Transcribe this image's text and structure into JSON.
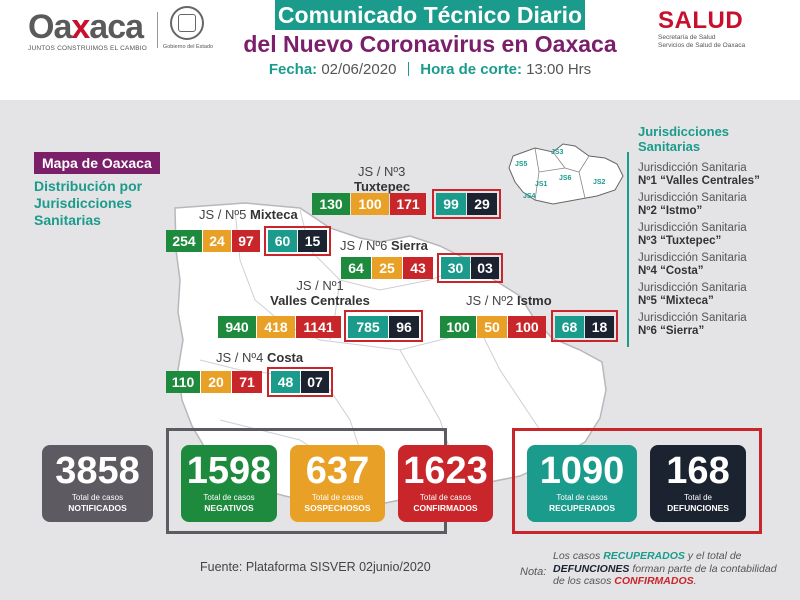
{
  "header": {
    "logo_word_pre": "Oa",
    "logo_word_x": "x",
    "logo_word_post": "aca",
    "logo_tagline": "JUNTOS CONSTRUIMOS EL CAMBIO",
    "seal_caption": "Gobierno del Estado",
    "title_line1": "Comunicado Técnico Diario",
    "title_line2": "del Nuevo Coronavirus en Oaxaca",
    "date_label": "Fecha:",
    "date_value": "02/06/2020",
    "cut_label": "Hora de corte:",
    "cut_value": "13:00 Hrs",
    "salud_word": "SALUD",
    "salud_sub1": "Secretaría de Salud",
    "salud_sub2": "Servicios de Salud de Oaxaca"
  },
  "map": {
    "title": "Mapa de Oaxaca",
    "subtitle": "Distribución por Jurisdicciones Sanitarias",
    "regions": [
      {
        "label_pre": "JS / Nº5",
        "label_name": "Mixteca",
        "values": [
          "254",
          "24",
          "97",
          "60",
          "15"
        ]
      },
      {
        "label_pre": "JS / Nº3",
        "label_name": "Tuxtepec",
        "values": [
          "130",
          "100",
          "171",
          "99",
          "29"
        ]
      },
      {
        "label_pre": "JS / Nº6",
        "label_name": "Sierra",
        "values": [
          "64",
          "25",
          "43",
          "30",
          "03"
        ]
      },
      {
        "label_pre": "JS / Nº1",
        "label_name": "Valles Centrales",
        "values": [
          "940",
          "418",
          "1141",
          "785",
          "96"
        ]
      },
      {
        "label_pre": "JS / Nº2",
        "label_name": "Istmo",
        "values": [
          "100",
          "50",
          "100",
          "68",
          "18"
        ]
      },
      {
        "label_pre": "JS / Nº4",
        "label_name": "Costa",
        "values": [
          "110",
          "20",
          "71",
          "48",
          "07"
        ]
      }
    ],
    "inset_labels": [
      "JS5",
      "JS3",
      "JS6",
      "JS1",
      "JS4",
      "JS2"
    ]
  },
  "legend": {
    "title_line1": "Jurisdicciones",
    "title_line2": "Sanitarias",
    "items": [
      {
        "line1": "Jurisdicción Sanitaria",
        "line2": "Nº1 “Valles Centrales”"
      },
      {
        "line1": "Jurisdicción Sanitaria",
        "line2": "Nº2 “Istmo”"
      },
      {
        "line1": "Jurisdicción Sanitaria",
        "line2": "Nº3 “Tuxtepec”"
      },
      {
        "line1": "Jurisdicción Sanitaria",
        "line2": "Nº4 “Costa”"
      },
      {
        "line1": "Jurisdicción Sanitaria",
        "line2": "Nº5 “Mixteca”"
      },
      {
        "line1": "Jurisdicción Sanitaria",
        "line2": "Nº6 “Sierra”"
      }
    ]
  },
  "totals": [
    {
      "value": "3858",
      "label": "Total de casos",
      "label2": "NOTIFICADOS",
      "color": "#5d5a61"
    },
    {
      "value": "1598",
      "label": "Total de casos",
      "label2": "NEGATIVOS",
      "color": "#1e8a3e"
    },
    {
      "value": "637",
      "label": "Total de casos",
      "label2": "SOSPECHOSOS",
      "color": "#e8a126"
    },
    {
      "value": "1623",
      "label": "Total de casos",
      "label2": "CONFIRMADOS",
      "color": "#c8262b"
    },
    {
      "value": "1090",
      "label": "Total de casos",
      "label2": "RECUPERADOS",
      "color": "#1a9b8c"
    },
    {
      "value": "168",
      "label": "Total de",
      "label2": "DEFUNCIONES",
      "color": "#1b2230"
    }
  ],
  "footer": {
    "source": "Fuente: Plataforma SISVER 02junio/2020",
    "note_label": "Nota:",
    "note_p1": "Los casos ",
    "note_recuperados": "RECUPERADOS",
    "note_p2": " y el total de ",
    "note_defunciones": "DEFUNCIONES",
    "note_p3": " forman parte de la contabilidad de los casos ",
    "note_confirmados": "CONFIRMADOS",
    "note_p4": "."
  }
}
